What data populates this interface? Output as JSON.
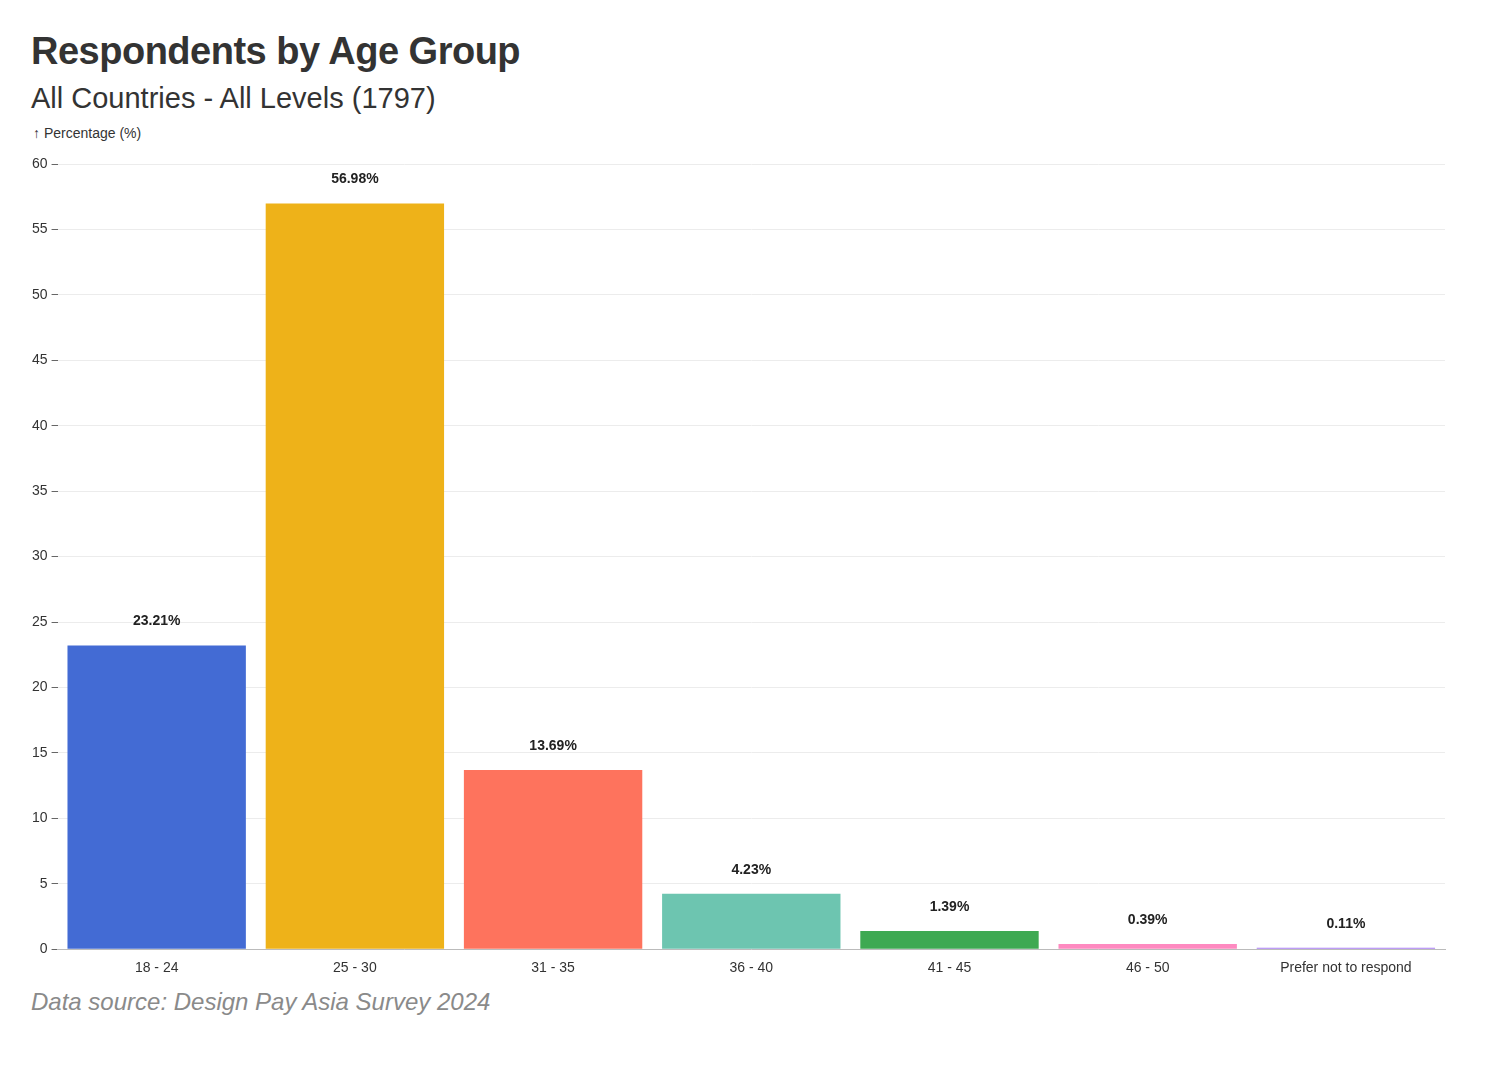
{
  "chart_data": {
    "type": "bar",
    "title": "Respondents by Age Group",
    "subtitle": "All Countries - All Levels (1797)",
    "ylabel": "↑ Percentage (%)",
    "source": "Data source: Design Pay Asia Survey 2024",
    "categories": [
      "18 - 24",
      "25 - 30",
      "31 - 35",
      "36 - 40",
      "41 - 45",
      "46 - 50",
      "Prefer not to respond"
    ],
    "values": [
      23.21,
      56.98,
      13.69,
      4.23,
      1.39,
      0.39,
      0.11
    ],
    "value_labels": [
      "23.21%",
      "56.98%",
      "13.69%",
      "4.23%",
      "1.39%",
      "0.39%",
      "0.11%"
    ],
    "colors": [
      "#436bd4",
      "#eeb219",
      "#fe735d",
      "#6dc5b0",
      "#3ea952",
      "#fe8ac0",
      "#a77cf2"
    ],
    "ylim": [
      0,
      60
    ],
    "yticks": [
      0,
      5,
      10,
      15,
      20,
      25,
      30,
      35,
      40,
      45,
      50,
      55,
      60
    ],
    "grid": true,
    "data_labels": true
  }
}
